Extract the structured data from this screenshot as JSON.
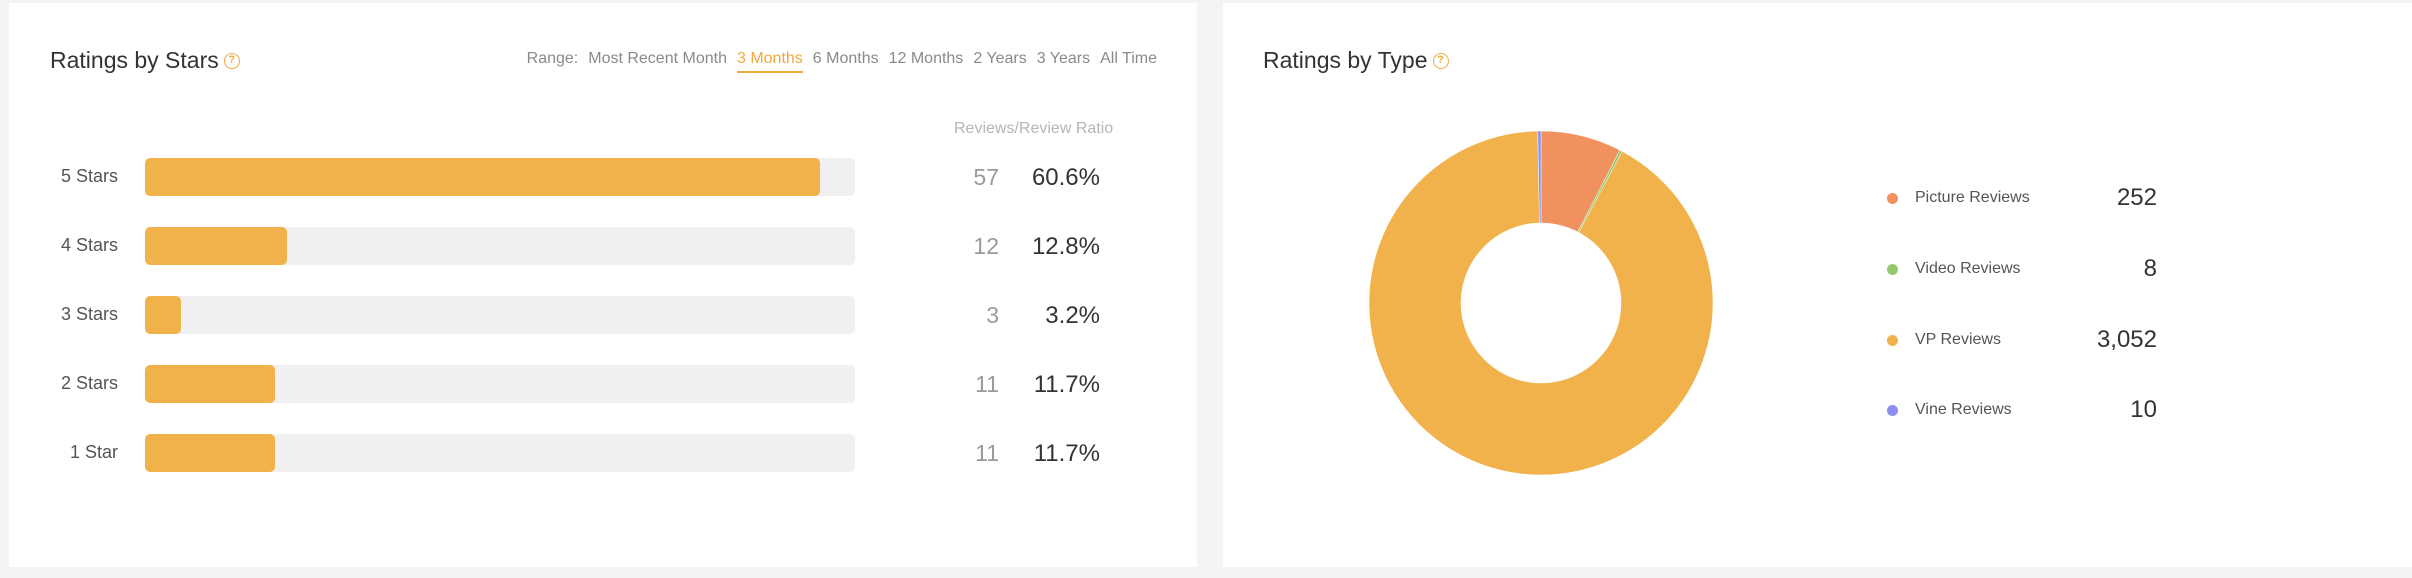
{
  "stars_card": {
    "title": "Ratings by Stars",
    "help_icon": "question-circle-icon",
    "range": {
      "label": "Range:",
      "options": [
        "Most Recent Month",
        "3 Months",
        "6 Months",
        "12 Months",
        "2 Years",
        "3 Years",
        "All Time"
      ],
      "selected": "3 Months"
    },
    "ratio_header": "Reviews/Review Ratio",
    "bar_color": "#f2b24b",
    "rows": [
      {
        "label": "5 Stars",
        "count": "57",
        "percent": "60.6%",
        "fill": 0.95
      },
      {
        "label": "4 Stars",
        "count": "12",
        "percent": "12.8%",
        "fill": 0.2
      },
      {
        "label": "3 Stars",
        "count": "3",
        "percent": "3.2%",
        "fill": 0.05
      },
      {
        "label": "2 Stars",
        "count": "11",
        "percent": "11.7%",
        "fill": 0.183
      },
      {
        "label": "1 Star",
        "count": "11",
        "percent": "11.7%",
        "fill": 0.183
      }
    ]
  },
  "type_card": {
    "title": "Ratings by Type",
    "help_icon": "question-circle-icon",
    "legend": [
      {
        "label": "Picture Reviews",
        "value": "252",
        "color": "#f0915e"
      },
      {
        "label": "Video Reviews",
        "value": "8",
        "color": "#95c96e"
      },
      {
        "label": "VP Reviews",
        "value": "3,052",
        "color": "#f2b24b"
      },
      {
        "label": "Vine Reviews",
        "value": "10",
        "color": "#8c8ff0"
      }
    ]
  },
  "chart_data": {
    "type": "pie",
    "categories": [
      "Picture Reviews",
      "Video Reviews",
      "VP Reviews",
      "Vine Reviews"
    ],
    "values": [
      252,
      8,
      3052,
      10
    ],
    "colors": [
      "#f0915e",
      "#95c96e",
      "#f2b24b",
      "#8c8ff0"
    ],
    "title": "Ratings by Type"
  }
}
